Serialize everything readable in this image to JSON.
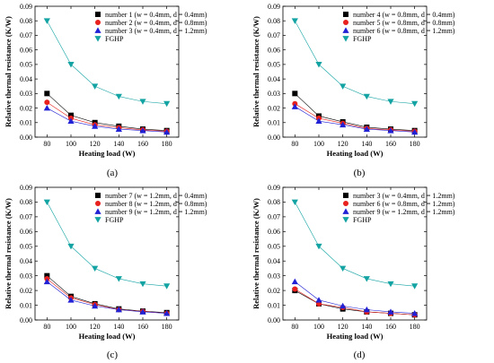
{
  "chart_data": [
    {
      "type": "line",
      "panel_label": "(a)",
      "xlabel": "Heating load (W)",
      "ylabel": "Relative thermal resistance (K/W)",
      "xlim": [
        70,
        190
      ],
      "ylim": [
        0,
        0.09
      ],
      "x": [
        80,
        100,
        120,
        140,
        160,
        180
      ],
      "x_ticks": [
        "80",
        "100",
        "120",
        "140",
        "160",
        "180"
      ],
      "y_ticks": [
        "0.00",
        "0.01",
        "0.02",
        "0.03",
        "0.04",
        "0.05",
        "0.06",
        "0.07",
        "0.08",
        "0.09"
      ],
      "legend_position": "top-right",
      "series": [
        {
          "name": "number 1 (w = 0.4mm, d = 0.4mm)",
          "color": "#000000",
          "marker": "square",
          "values": [
            0.03,
            0.015,
            0.01,
            0.0075,
            0.0055,
            0.0045
          ]
        },
        {
          "name": "number 2 (w = 0.4mm, d = 0.8mm)",
          "color": "#e8201e",
          "marker": "circle",
          "values": [
            0.024,
            0.013,
            0.0085,
            0.0065,
            0.005,
            0.004
          ]
        },
        {
          "name": "number 3 (w = 0.4mm, d = 1.2mm)",
          "color": "#2121d6",
          "marker": "triangle-up",
          "values": [
            0.02,
            0.011,
            0.0075,
            0.0055,
            0.0045,
            0.0035
          ]
        },
        {
          "name": "FGHP",
          "color": "#14a3a3",
          "marker": "triangle-down",
          "values": [
            0.08,
            0.05,
            0.035,
            0.028,
            0.0245,
            0.023
          ]
        }
      ]
    },
    {
      "type": "line",
      "panel_label": "(b)",
      "xlabel": "Heating load (W)",
      "ylabel": "Relative thermal resistance (K/W)",
      "xlim": [
        70,
        190
      ],
      "ylim": [
        0,
        0.09
      ],
      "x": [
        80,
        100,
        120,
        140,
        160,
        180
      ],
      "x_ticks": [
        "80",
        "100",
        "120",
        "140",
        "160",
        "180"
      ],
      "y_ticks": [
        "0.00",
        "0.01",
        "0.02",
        "0.03",
        "0.04",
        "0.05",
        "0.06",
        "0.07",
        "0.08",
        "0.09"
      ],
      "legend_position": "top-right",
      "series": [
        {
          "name": "number 4 (w = 0.8mm, d = 0.4mm)",
          "color": "#000000",
          "marker": "square",
          "values": [
            0.03,
            0.0145,
            0.0105,
            0.0068,
            0.0055,
            0.0045
          ]
        },
        {
          "name": "number 5 (w = 0.8mm, d = 0.8mm)",
          "color": "#e8201e",
          "marker": "circle",
          "values": [
            0.023,
            0.013,
            0.0095,
            0.006,
            0.005,
            0.004
          ]
        },
        {
          "name": "number 6 (w = 0.8mm, d = 1.2mm)",
          "color": "#2121d6",
          "marker": "triangle-up",
          "values": [
            0.021,
            0.011,
            0.0085,
            0.0055,
            0.0045,
            0.0035
          ]
        },
        {
          "name": "FGHP",
          "color": "#14a3a3",
          "marker": "triangle-down",
          "values": [
            0.08,
            0.05,
            0.035,
            0.028,
            0.0245,
            0.023
          ]
        }
      ]
    },
    {
      "type": "line",
      "panel_label": "(c)",
      "xlabel": "Heating load (W)",
      "ylabel": "Relative thermal resistance (K/W)",
      "xlim": [
        70,
        190
      ],
      "ylim": [
        0,
        0.09
      ],
      "x": [
        80,
        100,
        120,
        140,
        160,
        180
      ],
      "x_ticks": [
        "80",
        "100",
        "120",
        "140",
        "160",
        "180"
      ],
      "y_ticks": [
        "0.00",
        "0.01",
        "0.02",
        "0.03",
        "0.04",
        "0.05",
        "0.06",
        "0.07",
        "0.08",
        "0.09"
      ],
      "legend_position": "top-right",
      "series": [
        {
          "name": "number 7 (w = 1.2mm, d = 0.4mm)",
          "color": "#000000",
          "marker": "square",
          "values": [
            0.03,
            0.016,
            0.011,
            0.0075,
            0.006,
            0.005
          ]
        },
        {
          "name": "number 8 (w = 1.2mm, d = 0.8mm)",
          "color": "#e8201e",
          "marker": "circle",
          "values": [
            0.028,
            0.015,
            0.0105,
            0.007,
            0.0058,
            0.0045
          ]
        },
        {
          "name": "number 9 (w = 1.2mm, d = 1.2mm)",
          "color": "#2121d6",
          "marker": "triangle-up",
          "values": [
            0.026,
            0.0135,
            0.0095,
            0.007,
            0.0055,
            0.0045
          ]
        },
        {
          "name": "FGHP",
          "color": "#14a3a3",
          "marker": "triangle-down",
          "values": [
            0.08,
            0.05,
            0.035,
            0.028,
            0.0245,
            0.023
          ]
        }
      ]
    },
    {
      "type": "line",
      "panel_label": "(d)",
      "xlabel": "Heating load (W)",
      "ylabel": "Relative thermal resistance (K/W)",
      "xlim": [
        70,
        190
      ],
      "ylim": [
        0,
        0.09
      ],
      "x": [
        80,
        100,
        120,
        140,
        160,
        180
      ],
      "x_ticks": [
        "80",
        "100",
        "120",
        "140",
        "160",
        "180"
      ],
      "y_ticks": [
        "0.00",
        "0.01",
        "0.02",
        "0.03",
        "0.04",
        "0.05",
        "0.06",
        "0.07",
        "0.08",
        "0.09"
      ],
      "legend_position": "top-right",
      "series": [
        {
          "name": "number 3 (w = 0.4mm, d = 1.2mm)",
          "color": "#000000",
          "marker": "square",
          "values": [
            0.02,
            0.011,
            0.0075,
            0.0055,
            0.0045,
            0.0035
          ]
        },
        {
          "name": "number 6 (w = 0.8mm, d = 1.2mm)",
          "color": "#e8201e",
          "marker": "circle",
          "values": [
            0.021,
            0.011,
            0.0085,
            0.0055,
            0.0045,
            0.0035
          ]
        },
        {
          "name": "number 9 (w = 1.2mm, d = 1.2mm)",
          "color": "#2121d6",
          "marker": "triangle-up",
          "values": [
            0.026,
            0.0135,
            0.0095,
            0.007,
            0.0055,
            0.0045
          ]
        },
        {
          "name": "FGHP",
          "color": "#14a3a3",
          "marker": "triangle-down",
          "values": [
            0.08,
            0.05,
            0.035,
            0.028,
            0.0245,
            0.023
          ]
        }
      ]
    }
  ]
}
